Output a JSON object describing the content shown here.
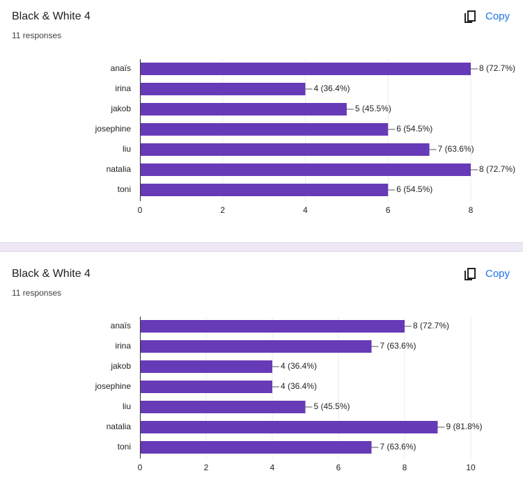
{
  "chart_data": [
    {
      "type": "barh",
      "title": "Black & White 4",
      "subtitle": "11 responses",
      "button": "Copy",
      "categories": [
        "anaïs",
        "irina",
        "jakob",
        "josephine",
        "liu",
        "natalia",
        "toni"
      ],
      "values": [
        8,
        4,
        5,
        6,
        7,
        8,
        6
      ],
      "value_labels": [
        "8 (72.7%)",
        "4 (36.4%)",
        "5 (45.5%)",
        "6 (54.5%)",
        "7 (63.6%)",
        "8 (72.7%)",
        "6 (54.5%)"
      ],
      "color": "#673ab7",
      "xlim": [
        0,
        8
      ],
      "xticks": [
        0,
        2,
        4,
        6,
        8
      ],
      "grid": true
    },
    {
      "type": "barh",
      "title": "Black & White 4",
      "subtitle": "11 responses",
      "button": "Copy",
      "categories": [
        "anaïs",
        "irina",
        "jakob",
        "josephine",
        "liu",
        "natalia",
        "toni"
      ],
      "values": [
        8,
        7,
        4,
        4,
        5,
        9,
        7
      ],
      "value_labels": [
        "8 (72.7%)",
        "7 (63.6%)",
        "4 (36.4%)",
        "4 (36.4%)",
        "5 (45.5%)",
        "9 (81.8%)",
        "7 (63.6%)"
      ],
      "color": "#673ab7",
      "xlim": [
        0,
        10
      ],
      "xticks": [
        0,
        2,
        4,
        6,
        8,
        10
      ],
      "grid": true
    }
  ]
}
